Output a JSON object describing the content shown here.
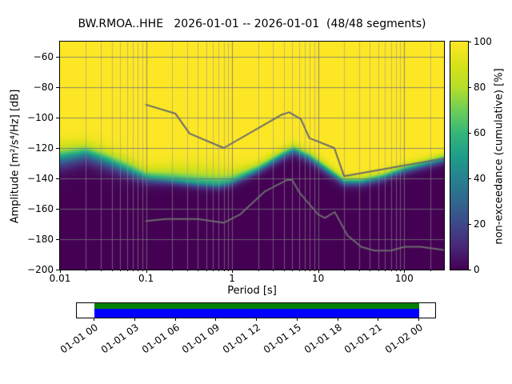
{
  "figure": {
    "title": "BW.RMOA..HHE   2026-01-01 -- 2026-01-01  (48/48 segments)"
  },
  "axes": {
    "xlabel": "Period [s]",
    "ylabel": "Amplitude [m²/s⁴/Hz] [dB]",
    "xtick_labels": [
      "0.01",
      "0.1",
      "1",
      "10",
      "100"
    ],
    "ytick_labels": [
      "−60",
      "−80",
      "−100",
      "−120",
      "−140",
      "−160",
      "−180",
      "−200"
    ]
  },
  "colorbar": {
    "label": "non-exceedance (cumulative) [%]",
    "tick_labels": [
      "0",
      "20",
      "40",
      "60",
      "80",
      "100"
    ]
  },
  "timeline": {
    "tick_labels": [
      "01-01 00",
      "01-01 03",
      "01-01 06",
      "01-01 09",
      "01-01 12",
      "01-01 15",
      "01-01 18",
      "01-01 21",
      "01-02 00"
    ],
    "coverage_color": "#008000",
    "gap_color": "#0000ff"
  },
  "chart_data": {
    "type": "heatmap",
    "title": "BW.RMOA..HHE   2026-01-01 -- 2026-01-01  (48/48 segments)",
    "x_axis": {
      "label": "Period [s]",
      "scale": "log",
      "range": [
        0.01,
        290
      ],
      "ticks": [
        0.01,
        0.1,
        1,
        10,
        100
      ]
    },
    "y_axis": {
      "label": "Amplitude [m²/s⁴/Hz] [dB]",
      "range": [
        -200,
        -50
      ],
      "ticks": [
        -60,
        -80,
        -100,
        -120,
        -140,
        -160,
        -180,
        -200
      ]
    },
    "colorbar": {
      "label": "non-exceedance (cumulative) [%]",
      "range": [
        0,
        100
      ],
      "ticks": [
        0,
        20,
        40,
        60,
        80,
        100
      ],
      "colormap": "viridis"
    },
    "viridis_stops": [
      "#440154",
      "#482878",
      "#3e4989",
      "#31688e",
      "#26828e",
      "#1f9e89",
      "#35b779",
      "#6ece58",
      "#b5de2b",
      "#d8e219",
      "#fde725"
    ],
    "ppsd_distribution": {
      "description": "Cumulative non-exceedance PPSD: per period, transition center in dB and lower/upper spread in dB (0% below band, 100% above band)",
      "points": [
        {
          "period": 0.01,
          "center": -126,
          "sigma_lo": 7,
          "sigma_hi": 7
        },
        {
          "period": 0.02,
          "center": -123,
          "sigma_lo": 6,
          "sigma_hi": 6
        },
        {
          "period": 0.032,
          "center": -127,
          "sigma_lo": 6,
          "sigma_hi": 6
        },
        {
          "period": 0.063,
          "center": -134,
          "sigma_lo": 5,
          "sigma_hi": 6
        },
        {
          "period": 0.1,
          "center": -139,
          "sigma_lo": 4,
          "sigma_hi": 5
        },
        {
          "period": 0.2,
          "center": -141,
          "sigma_lo": 3,
          "sigma_hi": 7
        },
        {
          "period": 0.4,
          "center": -143,
          "sigma_lo": 3,
          "sigma_hi": 8
        },
        {
          "period": 0.7,
          "center": -144,
          "sigma_lo": 3,
          "sigma_hi": 8
        },
        {
          "period": 1.0,
          "center": -142,
          "sigma_lo": 3,
          "sigma_hi": 6
        },
        {
          "period": 2.0,
          "center": -134,
          "sigma_lo": 3,
          "sigma_hi": 4
        },
        {
          "period": 4.0,
          "center": -124,
          "sigma_lo": 3.5,
          "sigma_hi": 3.5
        },
        {
          "period": 5.2,
          "center": -121,
          "sigma_lo": 3.5,
          "sigma_hi": 3.5
        },
        {
          "period": 8.0,
          "center": -126,
          "sigma_lo": 3.5,
          "sigma_hi": 3.5
        },
        {
          "period": 12.6,
          "center": -134,
          "sigma_lo": 3.5,
          "sigma_hi": 3.5
        },
        {
          "period": 20,
          "center": -142,
          "sigma_lo": 3,
          "sigma_hi": 3
        },
        {
          "period": 32,
          "center": -142,
          "sigma_lo": 3,
          "sigma_hi": 3
        },
        {
          "period": 56,
          "center": -139,
          "sigma_lo": 3,
          "sigma_hi": 3
        },
        {
          "period": 100,
          "center": -134,
          "sigma_lo": 3,
          "sigma_hi": 3
        },
        {
          "period": 290,
          "center": -127,
          "sigma_lo": 3,
          "sigma_hi": 3
        }
      ]
    },
    "noise_models": {
      "nhnm": [
        [
          0.1,
          -91.5
        ],
        [
          0.22,
          -97.4
        ],
        [
          0.32,
          -110.5
        ],
        [
          0.8,
          -120.0
        ],
        [
          3.8,
          -98.0
        ],
        [
          4.6,
          -96.5
        ],
        [
          6.3,
          -101.0
        ],
        [
          7.9,
          -113.5
        ],
        [
          15.4,
          -120.0
        ],
        [
          20.0,
          -138.5
        ],
        [
          354.8,
          -126.0
        ]
      ],
      "nlnm": [
        [
          0.1,
          -168.0
        ],
        [
          0.17,
          -166.7
        ],
        [
          0.4,
          -166.7
        ],
        [
          0.8,
          -169.2
        ],
        [
          1.24,
          -163.7
        ],
        [
          2.4,
          -148.6
        ],
        [
          4.3,
          -141.1
        ],
        [
          5.0,
          -141.1
        ],
        [
          6.0,
          -149.0
        ],
        [
          10.0,
          -163.8
        ],
        [
          12.0,
          -166.0
        ],
        [
          15.6,
          -162.1
        ],
        [
          21.9,
          -177.5
        ],
        [
          31.6,
          -185.0
        ],
        [
          45.0,
          -187.5
        ],
        [
          70.0,
          -187.5
        ],
        [
          101.0,
          -185.0
        ],
        [
          154.0,
          -185.0
        ],
        [
          328.0,
          -187.5
        ]
      ]
    },
    "grid": true,
    "legend": false
  }
}
